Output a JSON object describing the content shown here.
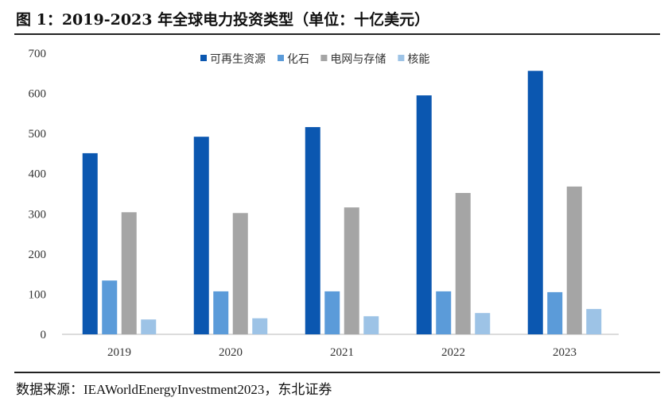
{
  "header": {
    "title": "图 1：2019-2023 年全球电力投资类型（单位：十亿美元）"
  },
  "footer": {
    "source": "数据来源：IEAWorldEnergyInvestment2023，东北证券"
  },
  "chart_data": {
    "type": "bar",
    "title": "图 1：2019-2023 年全球电力投资类型（单位：十亿美元）",
    "xlabel": "",
    "ylabel": "",
    "ylim": [
      0,
      700
    ],
    "yticks": [
      0,
      100,
      200,
      300,
      400,
      500,
      600,
      700
    ],
    "categories": [
      "2019",
      "2020",
      "2021",
      "2022",
      "2023"
    ],
    "legend_position": "top",
    "grid": false,
    "series": [
      {
        "name": "可再生资源",
        "color": "#0B57B0",
        "values": [
          451,
          492,
          516,
          595,
          656
        ]
      },
      {
        "name": "化石",
        "color": "#5B9BD9",
        "values": [
          134,
          107,
          107,
          107,
          105
        ]
      },
      {
        "name": "电网与存储",
        "color": "#A5A5A5",
        "values": [
          304,
          302,
          316,
          352,
          368
        ]
      },
      {
        "name": "核能",
        "color": "#9DC3E6",
        "values": [
          37,
          40,
          45,
          53,
          63
        ]
      }
    ]
  }
}
